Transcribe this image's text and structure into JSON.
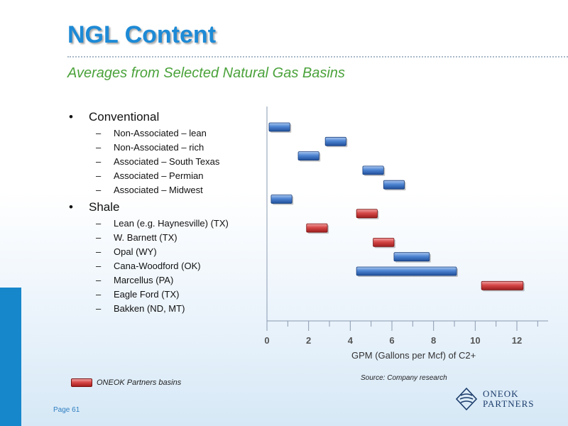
{
  "title": "NGL Content",
  "subtitle": "Averages from Selected Natural Gas Basins",
  "bullet_symbol": "•",
  "dash_symbol": "–",
  "groups": [
    {
      "label": "Conventional",
      "items": [
        "Non-Associated – lean",
        "Non-Associated – rich",
        "Associated – South Texas",
        "Associated – Permian",
        "Associated – Midwest"
      ]
    },
    {
      "label": "Shale",
      "items": [
        "Lean (e.g. Haynesville) (TX)",
        "W. Barnett (TX)",
        "Opal (WY)",
        "Cana-Woodford (OK)",
        "Marcellus (PA)",
        "Eagle Ford (TX)",
        "Bakken (ND, MT)"
      ]
    }
  ],
  "chart_data": {
    "type": "bar",
    "orientation": "horizontal-range",
    "xlabel": "GPM (Gallons per Mcf) of C2+",
    "ylabel": "",
    "xlim": [
      0,
      13.5
    ],
    "xticks": [
      0,
      2,
      4,
      6,
      8,
      10,
      12
    ],
    "grid": false,
    "categories": [
      "Non-Associated – lean",
      "Non-Associated – rich",
      "Associated – South Texas",
      "Associated – Permian",
      "Associated – Midwest",
      "Lean (e.g. Haynesville) (TX)",
      "W. Barnett (TX)",
      "Opal (WY)",
      "Cana-Woodford (OK)",
      "Marcellus (PA)",
      "Eagle Ford (TX)",
      "Bakken (ND, MT)"
    ],
    "ranges": [
      [
        0.1,
        1.1
      ],
      [
        2.8,
        3.8
      ],
      [
        1.5,
        2.5
      ],
      [
        4.6,
        5.6
      ],
      [
        5.6,
        6.6
      ],
      [
        0.2,
        1.2
      ],
      [
        4.3,
        5.3
      ],
      [
        1.9,
        2.9
      ],
      [
        5.1,
        6.1
      ],
      [
        6.1,
        7.8
      ],
      [
        4.3,
        9.1
      ],
      [
        10.3,
        12.3
      ]
    ],
    "oneok_basin": [
      false,
      false,
      false,
      false,
      false,
      false,
      true,
      true,
      true,
      false,
      false,
      true
    ],
    "colors": {
      "standard": "#3f74c4",
      "oneok": "#c83a3a",
      "axis": "#8a9ab0"
    }
  },
  "source": "Source: Company research",
  "legend": {
    "label": "ONEOK Partners basins"
  },
  "page_label": "Page 61",
  "logo": {
    "line1": "ONEOK",
    "line2": "PARTNERS"
  }
}
